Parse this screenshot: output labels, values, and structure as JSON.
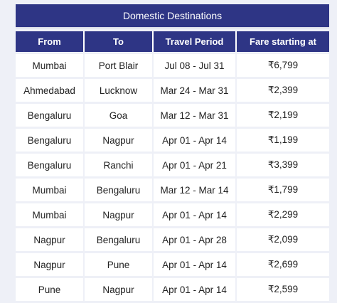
{
  "table": {
    "title": "Domestic Destinations",
    "headers": [
      "From",
      "To",
      "Travel Period",
      "Fare starting at"
    ],
    "rows": [
      [
        "Mumbai",
        "Port Blair",
        "Jul 08 - Jul 31",
        "₹6,799"
      ],
      [
        "Ahmedabad",
        "Lucknow",
        "Mar 24 - Mar 31",
        "₹2,399"
      ],
      [
        "Bengaluru",
        "Goa",
        "Mar 12 - Mar 31",
        "₹2,199"
      ],
      [
        "Bengaluru",
        "Nagpur",
        "Apr 01 - Apr 14",
        "₹1,199"
      ],
      [
        "Bengaluru",
        "Ranchi",
        "Apr 01 - Apr 21",
        "₹3,399"
      ],
      [
        "Mumbai",
        "Bengaluru",
        "Mar 12 - Mar 14",
        "₹1,799"
      ],
      [
        "Mumbai",
        "Nagpur",
        "Apr 01 - Apr 14",
        "₹2,299"
      ],
      [
        "Nagpur",
        "Bengaluru",
        "Apr 01 - Apr 28",
        "₹2,099"
      ],
      [
        "Nagpur",
        "Pune",
        "Apr 01 - Apr 14",
        "₹2,699"
      ],
      [
        "Pune",
        "Nagpur",
        "Apr 01 - Apr 14",
        "₹2,599"
      ]
    ]
  }
}
